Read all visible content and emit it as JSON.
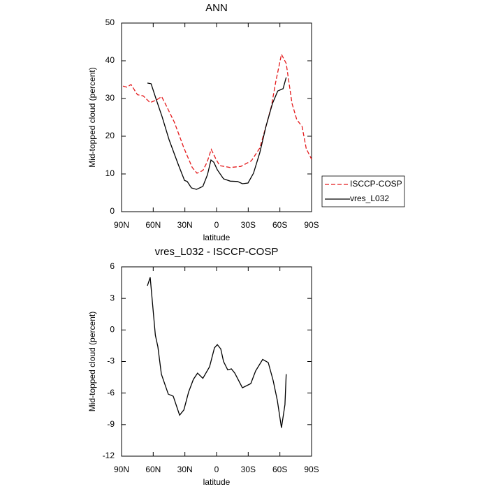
{
  "chart_data": [
    {
      "type": "line",
      "title": "ANN",
      "xlabel": "latitude",
      "ylabel": "Mid-topped cloud (percent)",
      "xlim": [
        90,
        -90
      ],
      "xticks": [
        {
          "value": 90,
          "label": "90N"
        },
        {
          "value": 60,
          "label": "60N"
        },
        {
          "value": 30,
          "label": "30N"
        },
        0,
        {
          "value": -30,
          "label": "30S"
        },
        {
          "value": -60,
          "label": "60S"
        },
        {
          "value": -90,
          "label": "90S"
        }
      ],
      "ylim": [
        0,
        50
      ],
      "yticks": [
        0,
        10,
        20,
        30,
        40,
        50
      ],
      "legend": "right",
      "series": [
        {
          "name": "ISCCP-COSP",
          "color": "#e41a1c",
          "line_style": "dashed",
          "x": [
            88.7,
            85,
            81,
            75,
            69.5,
            63,
            57,
            52,
            48,
            40,
            31,
            23,
            18.5,
            13,
            9,
            5,
            0.5,
            -3,
            -13,
            -23,
            -33,
            -41,
            -47,
            -52,
            -56,
            -61.5,
            -66,
            -71.5,
            -76,
            -81,
            -85,
            -90
          ],
          "values": [
            33.3,
            33,
            33.7,
            31,
            30.7,
            28.9,
            29.6,
            30.5,
            28.3,
            23.7,
            16.9,
            11.7,
            10.2,
            10.9,
            13.1,
            16.5,
            13.9,
            12.2,
            11.7,
            12,
            13.5,
            16.9,
            22.8,
            28,
            34.3,
            41.7,
            39.3,
            28.7,
            24.4,
            22.6,
            16.7,
            13.9
          ]
        },
        {
          "name": "vres_L032",
          "color": "#000000",
          "line_style": "solid",
          "x": [
            65.5,
            62,
            57,
            51.6,
            45,
            36.4,
            30.4,
            27.8,
            23.8,
            19,
            13,
            8.6,
            5.3,
            2.6,
            -0.7,
            -6.6,
            -13,
            -19.9,
            -24.5,
            -29.8,
            -35,
            -41,
            -47,
            -53,
            -58,
            -63,
            -66
          ],
          "values": [
            34.1,
            33.9,
            29.6,
            25.2,
            19.1,
            12.6,
            8.3,
            8,
            6.3,
            5.9,
            6.7,
            9.8,
            13.7,
            13.1,
            11.1,
            8.7,
            8.1,
            8,
            7.4,
            7.6,
            10.2,
            15.7,
            22.8,
            28.7,
            32,
            32.6,
            35.6
          ]
        }
      ]
    },
    {
      "type": "line",
      "title": "vres_L032 - ISCCP-COSP",
      "xlabel": "latitude",
      "ylabel": "Mid-topped cloud (percent)",
      "xlim": [
        90,
        -90
      ],
      "xticks": [
        {
          "value": 90,
          "label": "90N"
        },
        {
          "value": 60,
          "label": "60N"
        },
        {
          "value": 30,
          "label": "30N"
        },
        0,
        {
          "value": -30,
          "label": "30S"
        },
        {
          "value": -60,
          "label": "60S"
        },
        {
          "value": -90,
          "label": "90S"
        }
      ],
      "ylim": [
        -12,
        6
      ],
      "yticks": [
        -12,
        -9,
        -6,
        -3,
        0,
        3,
        6
      ],
      "series": [
        {
          "color": "#000000",
          "line_style": "solid",
          "x": [
            65.5,
            62.9,
            58,
            55.6,
            52.3,
            45.7,
            41,
            35,
            31,
            26.5,
            22,
            18,
            13,
            6.6,
            2,
            -0.7,
            -4,
            -6.6,
            -10.6,
            -14,
            -17.3,
            -24.5,
            -32.4,
            -37,
            -43.7,
            -49,
            -53.6,
            -57.6,
            -61.5,
            -64.8,
            -66
          ],
          "values": [
            4.2,
            5.0,
            -0.5,
            -1.6,
            -4.2,
            -6.1,
            -6.3,
            -8.1,
            -7.6,
            -5.9,
            -4.7,
            -4.1,
            -4.6,
            -3.5,
            -1.7,
            -1.4,
            -1.8,
            -3.0,
            -3.8,
            -3.7,
            -4.1,
            -5.5,
            -5.1,
            -3.9,
            -2.8,
            -3.1,
            -4.8,
            -6.7,
            -9.3,
            -7.1,
            -4.2
          ]
        }
      ]
    }
  ]
}
